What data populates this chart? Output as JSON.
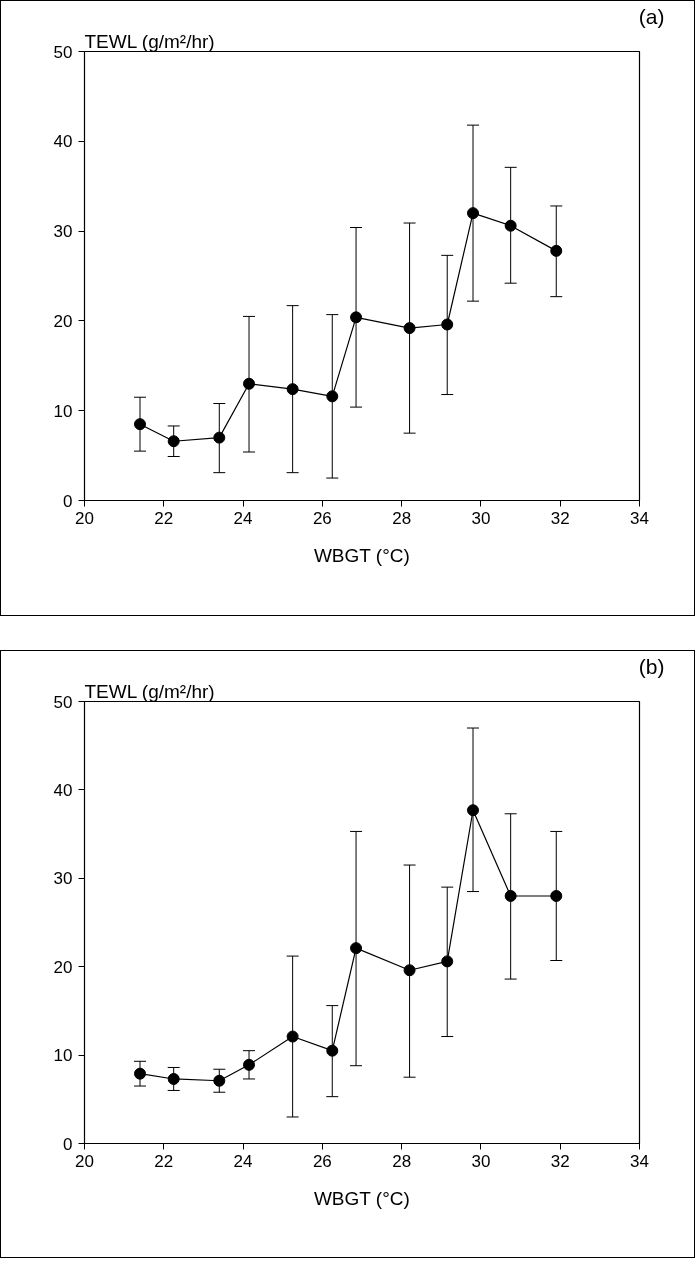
{
  "chart_data": [
    {
      "type": "line",
      "title": "(a)",
      "ylabel": "TEWL (g/m²/hr)",
      "xlabel": "WBGT (°C)",
      "marker": "circle",
      "grid": false,
      "x": [
        21.4,
        22.25,
        23.4,
        24.15,
        25.25,
        26.25,
        26.85,
        28.2,
        29.15,
        29.8,
        30.75,
        31.9
      ],
      "series": [
        {
          "color": "#000000",
          "values": [
            8.5,
            6.6,
            7.0,
            13.0,
            12.4,
            11.6,
            20.4,
            19.2,
            19.6,
            32.0,
            30.6,
            27.8
          ],
          "errors": [
            [
              5.5,
              11.5
            ],
            [
              4.9,
              8.3
            ],
            [
              3.1,
              10.8
            ],
            [
              5.4,
              20.5
            ],
            [
              3.1,
              21.7
            ],
            [
              2.5,
              20.7
            ],
            [
              10.4,
              30.4
            ],
            [
              7.5,
              30.9
            ],
            [
              11.8,
              27.3
            ],
            [
              22.2,
              41.8
            ],
            [
              24.2,
              37.1
            ],
            [
              22.7,
              32.8
            ]
          ]
        }
      ],
      "xlim": [
        20,
        34
      ],
      "xticks": [
        20,
        22,
        24,
        26,
        28,
        30,
        32,
        34
      ],
      "ylim": [
        0,
        50
      ],
      "yticks": [
        0,
        10,
        20,
        30,
        40,
        50
      ]
    },
    {
      "type": "line",
      "title": "(b)",
      "ylabel": "TEWL (g/m²/hr)",
      "xlabel": "WBGT (°C)",
      "marker": "circle",
      "grid": false,
      "x": [
        21.4,
        22.25,
        23.4,
        24.15,
        25.25,
        26.25,
        26.85,
        28.2,
        29.15,
        29.8,
        30.75,
        31.9
      ],
      "series": [
        {
          "color": "#000000",
          "values": [
            7.9,
            7.3,
            7.1,
            8.9,
            12.1,
            10.5,
            22.1,
            19.6,
            20.6,
            37.7,
            28.0,
            28.0
          ],
          "errors": [
            [
              6.5,
              9.3
            ],
            [
              6.0,
              8.6
            ],
            [
              5.8,
              8.4
            ],
            [
              7.3,
              10.5
            ],
            [
              3.0,
              21.2
            ],
            [
              5.3,
              15.6
            ],
            [
              8.8,
              35.3
            ],
            [
              7.5,
              31.5
            ],
            [
              12.1,
              29.0
            ],
            [
              28.5,
              47.0
            ],
            [
              18.6,
              37.3
            ],
            [
              20.7,
              35.3
            ]
          ]
        }
      ],
      "xlim": [
        20,
        34
      ],
      "xticks": [
        20,
        22,
        24,
        26,
        28,
        30,
        32,
        34
      ],
      "ylim": [
        0,
        50
      ],
      "yticks": [
        0,
        10,
        20,
        30,
        40,
        50
      ]
    }
  ]
}
